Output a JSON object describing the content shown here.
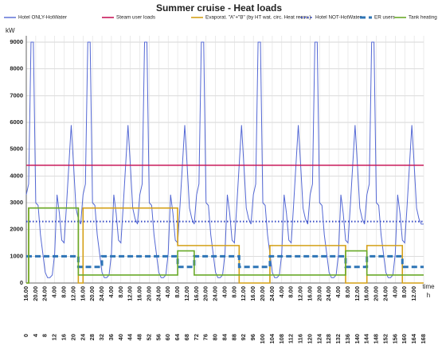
{
  "chart_data": {
    "type": "line",
    "title": "Summer cruise - Heat loads",
    "y_label": "kW",
    "x_label": "time",
    "x_unit": "h",
    "ylim": [
      0,
      9000
    ],
    "yticks": [
      0,
      1000,
      2000,
      3000,
      4000,
      5000,
      6000,
      7000,
      8000,
      9000
    ],
    "xlim": [
      0,
      168
    ],
    "xticks": [
      0,
      4,
      8,
      12,
      16,
      20,
      24,
      28,
      32,
      36,
      40,
      44,
      48,
      52,
      56,
      60,
      64,
      68,
      72,
      76,
      80,
      84,
      88,
      92,
      96,
      100,
      104,
      108,
      112,
      116,
      120,
      124,
      128,
      132,
      136,
      140,
      144,
      148,
      152,
      156,
      160,
      164,
      168
    ],
    "x_time_labels": [
      "16.00",
      "20.00",
      "24.00",
      "4.00",
      "8.00",
      "12.00",
      "16.00",
      "20.00",
      "24.00",
      "4.00",
      "8.00",
      "12.00",
      "16.00",
      "20.00",
      "24.00",
      "4.00",
      "8.00",
      "12.00",
      "16.00",
      "20.00",
      "24.00",
      "4.00",
      "8.00",
      "12.00",
      "16.00",
      "20.00",
      "24.00",
      "4.00",
      "8.00",
      "12.00",
      "16.00",
      "20.00",
      "24.00",
      "4.00",
      "8.00",
      "12.00",
      "16.00",
      "20.00",
      "24.00",
      "4.00",
      "8.00",
      "12.00"
    ],
    "grid": true,
    "legend": "top",
    "series": [
      {
        "name": "Hotel ONLY-HotWater",
        "color": "#5468d4",
        "dash": "solid",
        "width": 1,
        "x": [
          0,
          1,
          2,
          3,
          4,
          5,
          6,
          7,
          8,
          9,
          10,
          11,
          12,
          13,
          14,
          15,
          16,
          17,
          18,
          19,
          20,
          21,
          22,
          23,
          24,
          25,
          26,
          27,
          28,
          29,
          30,
          31,
          32,
          33,
          34,
          35,
          36,
          37,
          38,
          39,
          40,
          41,
          42,
          43,
          44,
          45,
          46,
          47,
          48,
          49,
          50,
          51,
          52,
          53,
          54,
          55,
          56,
          57,
          58,
          59,
          60,
          61,
          62,
          63,
          64,
          65,
          66,
          67,
          68,
          69,
          70,
          71,
          72,
          73,
          74,
          75,
          76,
          77,
          78,
          79,
          80,
          81,
          82,
          83,
          84,
          85,
          86,
          87,
          88,
          89,
          90,
          91,
          92,
          93,
          94,
          95,
          96,
          97,
          98,
          99,
          100,
          101,
          102,
          103,
          104,
          105,
          106,
          107,
          108,
          109,
          110,
          111,
          112,
          113,
          114,
          115,
          116,
          117,
          118,
          119,
          120,
          121,
          122,
          123,
          124,
          125,
          126,
          127,
          128,
          129,
          130,
          131,
          132,
          133,
          134,
          135,
          136,
          137,
          138,
          139,
          140,
          141,
          142,
          143,
          144,
          145,
          146,
          147,
          148,
          149,
          150,
          151,
          152,
          153,
          154,
          155,
          156,
          157,
          158,
          159,
          160,
          161,
          162,
          163,
          164,
          165,
          166,
          167,
          168
        ],
        "values": [
          3300,
          3700,
          9000,
          9000,
          3000,
          2900,
          1800,
          1100,
          400,
          200,
          200,
          300,
          1100,
          3300,
          2600,
          1600,
          1500,
          2900,
          4400,
          5900,
          4400,
          2800,
          2400,
          2200,
          3300,
          3700,
          9000,
          9000,
          3000,
          2900,
          1800,
          1100,
          400,
          200,
          200,
          300,
          1100,
          3300,
          2600,
          1600,
          1500,
          2900,
          4400,
          5900,
          4400,
          2800,
          2400,
          2200,
          3300,
          3700,
          9000,
          9000,
          3000,
          2900,
          1800,
          1100,
          400,
          200,
          200,
          300,
          1100,
          3300,
          2600,
          1600,
          1500,
          2900,
          4400,
          5900,
          4400,
          2800,
          2400,
          2200,
          3300,
          3700,
          9000,
          9000,
          3000,
          2900,
          1800,
          1100,
          400,
          200,
          200,
          300,
          1100,
          3300,
          2600,
          1600,
          1500,
          2900,
          4400,
          5900,
          4400,
          2800,
          2400,
          2200,
          3300,
          3700,
          9000,
          9000,
          3000,
          2900,
          1800,
          1100,
          400,
          200,
          200,
          300,
          1100,
          3300,
          2600,
          1600,
          1500,
          2900,
          4400,
          5900,
          4400,
          2800,
          2400,
          2200,
          3300,
          3700,
          9000,
          9000,
          3000,
          2900,
          1800,
          1100,
          400,
          200,
          200,
          300,
          1100,
          3300,
          2600,
          1600,
          1500,
          2900,
          4400,
          5900,
          4400,
          2800,
          2400,
          2200,
          3300,
          3700,
          9000,
          9000,
          3000,
          2900,
          1800,
          1100,
          400,
          200,
          200,
          300,
          1100,
          3300,
          2600,
          1600,
          1500,
          2900,
          4400,
          5900,
          4400,
          2800,
          2400,
          2200,
          2200
        ]
      },
      {
        "name": "Steam user loads",
        "color": "#c8185a",
        "dash": "solid",
        "width": 1.6,
        "x": [
          0,
          168
        ],
        "values": [
          4400,
          4400
        ]
      },
      {
        "name": "Evaporat. \"A\"+\"B\" (by HT wat. circ. Heat recov.)",
        "color": "#d4a017",
        "dash": "solid",
        "width": 1.6,
        "x": [
          0,
          1,
          1,
          22,
          22,
          24,
          24,
          64,
          64,
          90,
          90,
          103,
          103,
          135,
          135,
          144,
          144,
          159,
          159,
          168
        ],
        "values": [
          0,
          0,
          2800,
          2800,
          0,
          0,
          2800,
          2800,
          1400,
          1400,
          0,
          0,
          1400,
          1400,
          0,
          0,
          1400,
          1400,
          0,
          0
        ]
      },
      {
        "name": "Hotel NOT-HotWater",
        "color": "#3347c4",
        "dash": "dotted",
        "width": 2,
        "x": [
          0,
          168
        ],
        "values": [
          2300,
          2300
        ]
      },
      {
        "name": "ER users",
        "color": "#2e75b6",
        "dash": "dashed",
        "width": 3,
        "x": [
          0,
          22,
          22,
          32,
          32,
          64,
          64,
          71,
          71,
          90,
          90,
          103,
          103,
          135,
          135,
          144,
          144,
          159,
          159,
          168
        ],
        "values": [
          1000,
          1000,
          600,
          600,
          1000,
          1000,
          600,
          600,
          1000,
          1000,
          600,
          600,
          1000,
          1000,
          600,
          600,
          1000,
          1000,
          600,
          600
        ]
      },
      {
        "name": "Tank heating",
        "color": "#6aaa2a",
        "dash": "solid",
        "width": 1.6,
        "x": [
          0,
          1,
          1,
          22,
          22,
          64,
          64,
          71,
          71,
          135,
          135,
          144,
          144,
          168
        ],
        "values": [
          0,
          0,
          2800,
          2800,
          300,
          300,
          1200,
          1200,
          300,
          300,
          1200,
          1200,
          300,
          300
        ]
      }
    ]
  }
}
